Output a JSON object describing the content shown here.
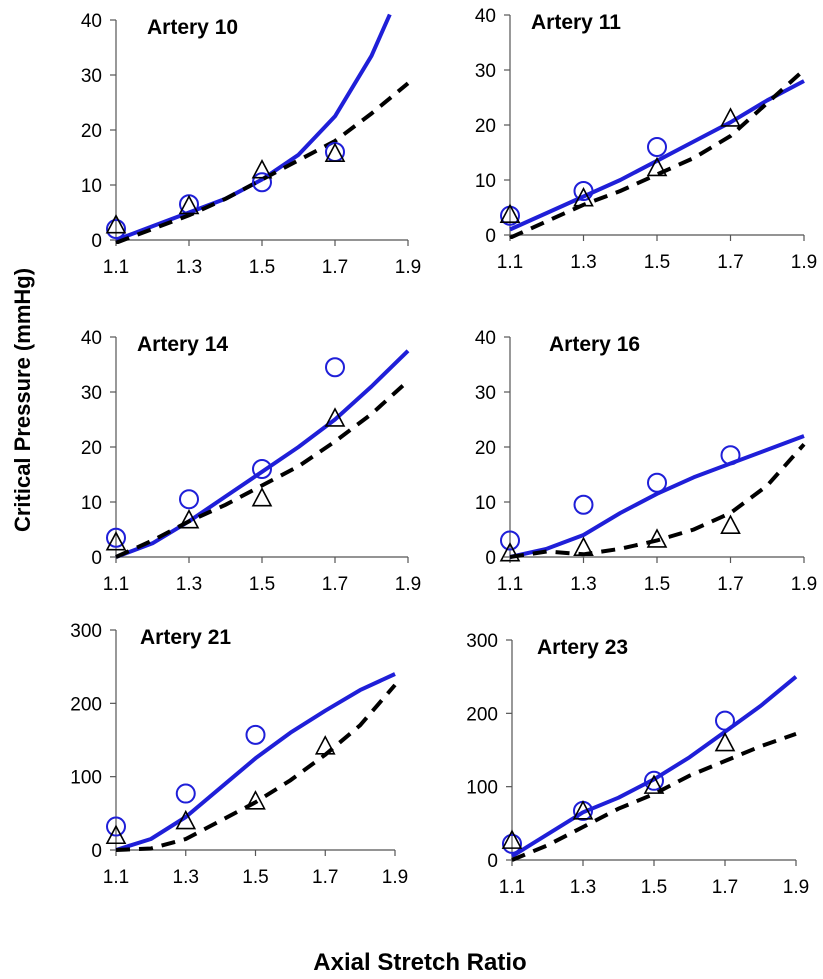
{
  "chart_data": {
    "type": "line",
    "ylabel": "Critical Pressure (mmHg)",
    "xlabel": "Axial Stretch Ratio",
    "colors": {
      "solid": "#1f1fd8",
      "dashed": "#000000",
      "circle": "#1f1fd8",
      "triangle": "#000000"
    },
    "panels": [
      {
        "title": "Artery 10",
        "xlim": [
          1.1,
          1.9
        ],
        "ylim": [
          0,
          40
        ],
        "xticks": [
          "1.1",
          "1.3",
          "1.5",
          "1.7",
          "1.9"
        ],
        "yticks": [
          "0",
          "10",
          "20",
          "30",
          "40"
        ],
        "solid_line": {
          "x": [
            1.1,
            1.2,
            1.3,
            1.4,
            1.5,
            1.6,
            1.7,
            1.8,
            1.85
          ],
          "y": [
            0,
            2.5,
            5,
            7.5,
            11,
            15.5,
            22.5,
            33.5,
            41
          ]
        },
        "dashed_line": {
          "x": [
            1.1,
            1.2,
            1.3,
            1.4,
            1.5,
            1.6,
            1.7,
            1.8,
            1.9
          ],
          "y": [
            -0.5,
            2,
            4.5,
            7.5,
            11,
            14.5,
            18,
            23,
            28.5
          ]
        },
        "circles": {
          "x": [
            1.1,
            1.3,
            1.5,
            1.7
          ],
          "y": [
            2,
            6.5,
            10.5,
            16
          ]
        },
        "triangles": {
          "x": [
            1.1,
            1.3,
            1.5,
            1.7
          ],
          "y": [
            2.5,
            6,
            12.5,
            15.5
          ]
        }
      },
      {
        "title": "Artery 11",
        "xlim": [
          1.1,
          1.9
        ],
        "ylim": [
          0,
          40
        ],
        "xticks": [
          "1.1",
          "1.3",
          "1.5",
          "1.7",
          "1.9"
        ],
        "yticks": [
          "0",
          "10",
          "20",
          "30",
          "40"
        ],
        "solid_line": {
          "x": [
            1.1,
            1.2,
            1.3,
            1.4,
            1.5,
            1.6,
            1.7,
            1.8,
            1.9
          ],
          "y": [
            1,
            4,
            7,
            10,
            13.5,
            17,
            20.5,
            24.5,
            28
          ]
        },
        "dashed_line": {
          "x": [
            1.1,
            1.2,
            1.3,
            1.4,
            1.5,
            1.6,
            1.7,
            1.8,
            1.9
          ],
          "y": [
            -0.5,
            2.5,
            5.5,
            8,
            11,
            14,
            18,
            24,
            30
          ]
        },
        "circles": {
          "x": [
            1.1,
            1.3,
            1.5
          ],
          "y": [
            3.5,
            8,
            16
          ]
        },
        "triangles": {
          "x": [
            1.1,
            1.3,
            1.5,
            1.7
          ],
          "y": [
            3.5,
            6.5,
            12,
            21
          ]
        }
      },
      {
        "title": "Artery 14",
        "xlim": [
          1.1,
          1.9
        ],
        "ylim": [
          0,
          40
        ],
        "xticks": [
          "1.1",
          "1.3",
          "1.5",
          "1.7",
          "1.9"
        ],
        "yticks": [
          "0",
          "10",
          "20",
          "30",
          "40"
        ],
        "solid_line": {
          "x": [
            1.1,
            1.2,
            1.3,
            1.4,
            1.5,
            1.6,
            1.7,
            1.8,
            1.9
          ],
          "y": [
            0,
            2.5,
            6.5,
            11,
            15.5,
            20,
            25,
            31,
            37.5
          ]
        },
        "dashed_line": {
          "x": [
            1.1,
            1.2,
            1.3,
            1.4,
            1.5,
            1.6,
            1.7,
            1.8,
            1.9
          ],
          "y": [
            0,
            3,
            6.5,
            9.5,
            13,
            16.5,
            21,
            26,
            32
          ]
        },
        "circles": {
          "x": [
            1.1,
            1.3,
            1.5,
            1.7
          ],
          "y": [
            3.5,
            10.5,
            16,
            34.5
          ]
        },
        "triangles": {
          "x": [
            1.1,
            1.3,
            1.5,
            1.7
          ],
          "y": [
            2.5,
            6.5,
            10.5,
            25
          ]
        }
      },
      {
        "title": "Artery 16",
        "xlim": [
          1.1,
          1.9
        ],
        "ylim": [
          0,
          40
        ],
        "xticks": [
          "1.1",
          "1.3",
          "1.5",
          "1.7",
          "1.9"
        ],
        "yticks": [
          "0",
          "10",
          "20",
          "30",
          "40"
        ],
        "solid_line": {
          "x": [
            1.1,
            1.2,
            1.3,
            1.4,
            1.5,
            1.6,
            1.7,
            1.8,
            1.9
          ],
          "y": [
            0,
            1.5,
            4,
            8,
            11.5,
            14.5,
            17,
            19.5,
            22
          ]
        },
        "dashed_line": {
          "x": [
            1.1,
            1.2,
            1.3,
            1.4,
            1.5,
            1.6,
            1.7,
            1.8,
            1.9
          ],
          "y": [
            0,
            1,
            0.5,
            1.5,
            3,
            5,
            8,
            13,
            20.5
          ]
        },
        "circles": {
          "x": [
            1.1,
            1.3,
            1.5,
            1.7
          ],
          "y": [
            3,
            9.5,
            13.5,
            18.5
          ]
        },
        "triangles": {
          "x": [
            1.1,
            1.3,
            1.5,
            1.7
          ],
          "y": [
            0.5,
            1.5,
            3,
            5.5
          ]
        }
      },
      {
        "title": "Artery 21",
        "xlim": [
          1.1,
          1.9
        ],
        "ylim": [
          0,
          300
        ],
        "xticks": [
          "1.1",
          "1.3",
          "1.5",
          "1.7",
          "1.9"
        ],
        "yticks": [
          "0",
          "100",
          "200",
          "300"
        ],
        "solid_line": {
          "x": [
            1.1,
            1.2,
            1.3,
            1.4,
            1.5,
            1.6,
            1.7,
            1.8,
            1.9
          ],
          "y": [
            0,
            15,
            45,
            85,
            125,
            160,
            190,
            218,
            240
          ]
        },
        "dashed_line": {
          "x": [
            1.1,
            1.2,
            1.3,
            1.4,
            1.5,
            1.6,
            1.7,
            1.8,
            1.9
          ],
          "y": [
            0,
            2,
            15,
            40,
            65,
            95,
            130,
            170,
            225
          ]
        },
        "circles": {
          "x": [
            1.1,
            1.3,
            1.5
          ],
          "y": [
            32,
            77,
            157
          ]
        },
        "triangles": {
          "x": [
            1.1,
            1.3,
            1.5,
            1.7
          ],
          "y": [
            18,
            38,
            65,
            140
          ]
        }
      },
      {
        "title": "Artery 23",
        "xlim": [
          1.1,
          1.9
        ],
        "ylim": [
          0,
          300
        ],
        "xticks": [
          "1.1",
          "1.3",
          "1.5",
          "1.7",
          "1.9"
        ],
        "yticks": [
          "0",
          "100",
          "200",
          "300"
        ],
        "solid_line": {
          "x": [
            1.1,
            1.2,
            1.3,
            1.4,
            1.5,
            1.6,
            1.7,
            1.8,
            1.9
          ],
          "y": [
            5,
            35,
            65,
            85,
            110,
            140,
            175,
            210,
            250
          ]
        },
        "dashed_line": {
          "x": [
            1.1,
            1.2,
            1.3,
            1.4,
            1.5,
            1.6,
            1.7,
            1.8,
            1.9
          ],
          "y": [
            0,
            20,
            45,
            70,
            90,
            115,
            135,
            155,
            172
          ]
        },
        "circles": {
          "x": [
            1.1,
            1.3,
            1.5,
            1.7
          ],
          "y": [
            22,
            67,
            108,
            190
          ]
        },
        "triangles": {
          "x": [
            1.1,
            1.3,
            1.5,
            1.7
          ],
          "y": [
            25,
            65,
            100,
            158
          ]
        }
      }
    ]
  }
}
